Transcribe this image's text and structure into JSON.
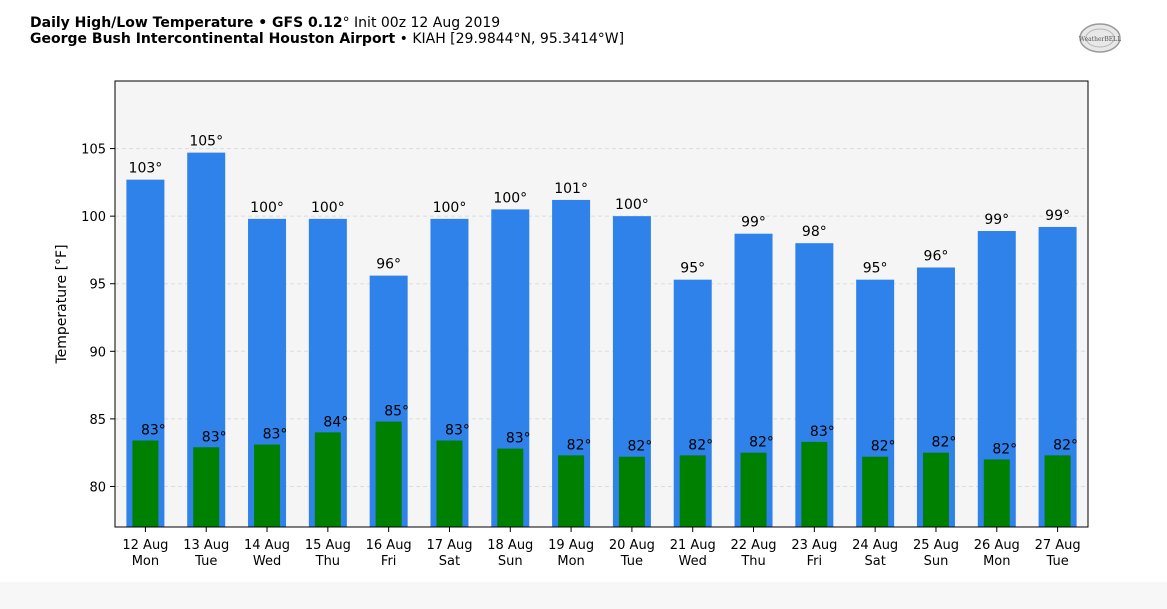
{
  "header": {
    "title_bold": "Daily High/Low Temperature • GFS 0.12",
    "title_deg": "°",
    "title_init": "Init 00z 12 Aug 2019",
    "station_bold": "George Bush Intercontinental Houston Airport",
    "station_rest": "• KIAH [29.9844°N, 95.3414°W]",
    "logo_text": "WeatherBELL"
  },
  "colors": {
    "high_bar": "#2e82ea",
    "low_bar": "#008000",
    "plot_bg": "#f5f5f5",
    "grid": "#dcdcdc"
  },
  "chart_data": {
    "type": "bar",
    "ylabel": "Temperature [°F]",
    "xlabel": "",
    "title": "",
    "ylim": [
      77,
      110
    ],
    "yticks": [
      80,
      85,
      90,
      95,
      100,
      105
    ],
    "grid": "horizontal-dashed",
    "categories": [
      [
        "12 Aug",
        "Mon"
      ],
      [
        "13 Aug",
        "Tue"
      ],
      [
        "14 Aug",
        "Wed"
      ],
      [
        "15 Aug",
        "Thu"
      ],
      [
        "16 Aug",
        "Fri"
      ],
      [
        "17 Aug",
        "Sat"
      ],
      [
        "18 Aug",
        "Sun"
      ],
      [
        "19 Aug",
        "Mon"
      ],
      [
        "20 Aug",
        "Tue"
      ],
      [
        "21 Aug",
        "Wed"
      ],
      [
        "22 Aug",
        "Thu"
      ],
      [
        "23 Aug",
        "Fri"
      ],
      [
        "24 Aug",
        "Sat"
      ],
      [
        "25 Aug",
        "Sun"
      ],
      [
        "26 Aug",
        "Mon"
      ],
      [
        "27 Aug",
        "Tue"
      ]
    ],
    "series": [
      {
        "values": [
          102.7,
          104.7,
          99.8,
          99.8,
          95.6,
          99.8,
          100.5,
          101.2,
          100.0,
          95.3,
          98.7,
          98.0,
          95.3,
          96.2,
          98.9,
          99.2
        ],
        "labels": [
          "103°",
          "105°",
          "100°",
          "100°",
          "96°",
          "100°",
          "100°",
          "101°",
          "100°",
          "95°",
          "99°",
          "98°",
          "95°",
          "96°",
          "99°",
          "99°"
        ]
      },
      {
        "values": [
          83.4,
          82.9,
          83.1,
          84.0,
          84.8,
          83.4,
          82.8,
          82.3,
          82.2,
          82.3,
          82.5,
          83.3,
          82.2,
          82.5,
          82.0,
          82.3
        ],
        "labels": [
          "83°",
          "83°",
          "83°",
          "84°",
          "85°",
          "83°",
          "83°",
          "82°",
          "82°",
          "82°",
          "82°",
          "83°",
          "82°",
          "82°",
          "82°",
          "82°"
        ]
      }
    ]
  }
}
